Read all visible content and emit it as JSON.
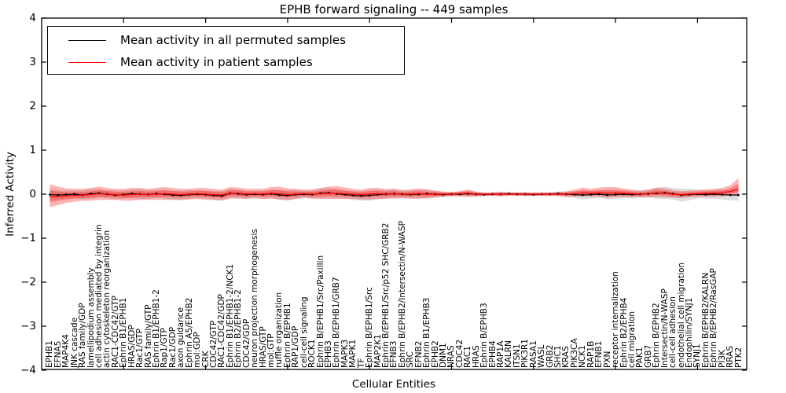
{
  "title": "EPHB forward signaling -- 449 samples",
  "axes": {
    "ylabel": "Inferred Activity",
    "xlabel": "Cellular Entities",
    "yticks": [
      "4",
      "3",
      "2",
      "1",
      "0",
      "−1",
      "−2",
      "−3",
      "−4"
    ]
  },
  "legend": {
    "items": [
      {
        "label": "Mean activity in all permuted samples",
        "color": "#000000"
      },
      {
        "label": "Mean activity in patient samples",
        "color": "#ff0000"
      }
    ]
  },
  "chart_data": {
    "type": "line",
    "title": "EPHB forward signaling -- 449 samples",
    "xlabel": "Cellular Entities",
    "ylabel": "Inferred Activity",
    "ylim": [
      -4,
      4
    ],
    "ytick_values": [
      4,
      3,
      2,
      1,
      0,
      -1,
      -2,
      -3,
      -4
    ],
    "xtick_positions": [
      10,
      20,
      30,
      40,
      50,
      60,
      70,
      80
    ],
    "grid": false,
    "legend_position": "upper left",
    "categories": [
      "EPHB1",
      "EFNA5",
      "MAP4K4",
      "JNK cascade",
      "RAS family/GDP",
      "lamellipodium assembly",
      "cell adhesion mediated by integrin",
      "actin cytoskeleton reorganization",
      "RAC1-CDC42/GTP",
      "Ephrin B1/EPHB1",
      "HRAS/GDP",
      "Rac1/GTP",
      "RAS family/GTP",
      "Ephrin B1/EPHB1-2",
      "Rap1/GTP",
      "Rac1/GDP",
      "axon guidance",
      "Ephrin A5/EPHB2",
      "mol:GDP",
      "CRK",
      "CDC42/GTP",
      "RAC1-CDC42/GDP",
      "Ephrin B1/EPHB1-2/NCK1",
      "Ephrin B2/EPHB1-2",
      "CDC42/GDP",
      "neuron projection morphogenesis",
      "HRAS/GTP",
      "mol:GTP",
      "ruffle organization",
      "Ephrin B/EPHB1",
      "RAP1/GDP",
      "cell-cell signaling",
      "ROCK1",
      "Ephrin B/EPHB1/Src/Paxillin",
      "EPHB3",
      "Ephrin B/EPHB1/GRB7",
      "MAPK3",
      "MAPK1",
      "TF",
      "Ephrin B/EPHB1/Src",
      "MAP2K1",
      "Ephrin B/EPHB1/Src/p52 SHC/GRB2",
      "EFNB3",
      "Ephrin B/EPHB2/Intersectin/N-WASP",
      "SRC",
      "EFNB2",
      "Ephrin B1/EPHB3",
      "EPHB2",
      "DNM1",
      "NRAS",
      "CDC42",
      "RAC1",
      "HRAS",
      "Ephrin B/EPHB3",
      "EPHB4",
      "RAP1A",
      "KALRN",
      "ITSN1",
      "PIK3R1",
      "RASA1",
      "WASL",
      "GRB2",
      "SHC1",
      "KRAS",
      "PIK3CA",
      "NCK1",
      "RAP1B",
      "EFNB1",
      "PXN",
      "receptor internalization",
      "Ephrin B2/EPHB4",
      "cell migration",
      "PAK1",
      "GRB7",
      "Ephrin B/EPHB2",
      "Intersectin/N-WASP",
      "cell-cell adhesion",
      "endothelial cell migration",
      "Endophilin/SYNJ1",
      "SYNJ1",
      "Ephrin B/EPHB2/KALRN",
      "Ephrin B/EPHB2/RasGAP",
      "PI3K",
      "RRAS",
      "PTK2"
    ],
    "series": [
      {
        "name": "Mean activity in all permuted samples",
        "color": "#000000",
        "marker": "dot",
        "values": [
          -0.01,
          -0.02,
          -0.01,
          0,
          -0.02,
          0.01,
          0.02,
          0,
          -0.02,
          -0.01,
          0.01,
          0,
          -0.01,
          0.01,
          0,
          -0.02,
          -0.03,
          -0.01,
          0,
          -0.01,
          -0.03,
          -0.04,
          0.02,
          0.01,
          -0.01,
          0,
          -0.01,
          0.01,
          -0.02,
          -0.03,
          -0.01,
          0,
          -0.01,
          0.02,
          0.03,
          0.01,
          -0.01,
          -0.03,
          -0.04,
          -0.03,
          -0.01,
          0,
          0.01,
          0,
          -0.01,
          0,
          0.01,
          0,
          -0.01,
          0,
          0,
          0.01,
          0,
          -0.01,
          0,
          0,
          0.01,
          0,
          0,
          -0.01,
          0,
          0,
          0.01,
          0,
          -0.01,
          -0.02,
          -0.01,
          0,
          -0.02,
          -0.01,
          0,
          -0.01,
          0,
          0.01,
          0.02,
          0.03,
          0.01,
          -0.02,
          -0.01,
          0,
          -0.01,
          0,
          -0.01,
          -0.02,
          -0.02
        ]
      },
      {
        "name": "Mean activity in patient samples",
        "color": "#ff0000",
        "marker": null,
        "values": [
          -0.06,
          -0.05,
          -0.04,
          -0.03,
          -0.02,
          -0.01,
          0.01,
          0,
          -0.01,
          -0.02,
          -0.01,
          0,
          -0.01,
          0,
          0.01,
          0,
          -0.01,
          0,
          0.01,
          0,
          -0.01,
          -0.02,
          0.02,
          0.02,
          0,
          0.01,
          0,
          0.02,
          0.01,
          -0.01,
          0,
          0.01,
          0,
          0.01,
          0.02,
          0.02,
          0.01,
          0,
          -0.01,
          0,
          0.01,
          0,
          0.01,
          0,
          0,
          0.01,
          0,
          0,
          0,
          0,
          0.01,
          0.02,
          0,
          0,
          0,
          0,
          0,
          0,
          0,
          0,
          0,
          0,
          0,
          0,
          0.01,
          0.03,
          0.02,
          0.03,
          0.02,
          0.03,
          0.02,
          0.01,
          0,
          0.01,
          0.03,
          0.02,
          0,
          -0.01,
          0,
          0.01,
          0.02,
          0.02,
          0.03,
          0.06,
          0.12
        ]
      }
    ],
    "bands": [
      {
        "name": "permuted samples range",
        "color": "#000000",
        "opacity": 0.13,
        "center_series": 0,
        "draw_scales": [
          1
        ],
        "upper_offset": [
          0.12,
          0.1,
          0.09,
          0.09,
          0.1,
          0.11,
          0.1,
          0.09,
          0.1,
          0.09,
          0.1,
          0.11,
          0.1,
          0.09,
          0.1,
          0.1,
          0.11,
          0.1,
          0.09,
          0.09,
          0.1,
          0.11,
          0.1,
          0.09,
          0.09,
          0.08,
          0.09,
          0.1,
          0.11,
          0.12,
          0.1,
          0.08,
          0.09,
          0.1,
          0.11,
          0.1,
          0.09,
          0.1,
          0.11,
          0.12,
          0.11,
          0.1,
          0.09,
          0.08,
          0.09,
          0.1,
          0.09,
          0.07,
          0.06,
          0.05,
          0.05,
          0.06,
          0.05,
          0.04,
          0.04,
          0.05,
          0.04,
          0.04,
          0.05,
          0.04,
          0.04,
          0.04,
          0.05,
          0.06,
          0.08,
          0.1,
          0.09,
          0.08,
          0.1,
          0.09,
          0.08,
          0.09,
          0.08,
          0.09,
          0.12,
          0.14,
          0.13,
          0.15,
          0.13,
          0.1,
          0.09,
          0.1,
          0.11,
          0.12,
          0.13
        ],
        "lower_offset": [
          0.12,
          0.1,
          0.09,
          0.09,
          0.1,
          0.11,
          0.1,
          0.09,
          0.1,
          0.09,
          0.1,
          0.11,
          0.1,
          0.09,
          0.1,
          0.1,
          0.11,
          0.1,
          0.09,
          0.09,
          0.1,
          0.11,
          0.1,
          0.09,
          0.09,
          0.08,
          0.09,
          0.1,
          0.11,
          0.12,
          0.1,
          0.08,
          0.09,
          0.1,
          0.11,
          0.1,
          0.09,
          0.1,
          0.11,
          0.12,
          0.11,
          0.1,
          0.09,
          0.08,
          0.09,
          0.1,
          0.09,
          0.07,
          0.06,
          0.05,
          0.05,
          0.06,
          0.05,
          0.04,
          0.04,
          0.05,
          0.04,
          0.04,
          0.05,
          0.04,
          0.04,
          0.04,
          0.05,
          0.06,
          0.08,
          0.1,
          0.09,
          0.08,
          0.1,
          0.09,
          0.08,
          0.09,
          0.08,
          0.09,
          0.12,
          0.14,
          0.13,
          0.15,
          0.13,
          0.1,
          0.09,
          0.1,
          0.11,
          0.12,
          0.13
        ]
      },
      {
        "name": "patient samples range",
        "color": "#ff0000",
        "opacity": 0.3,
        "center_series": 1,
        "draw_scales": [
          1,
          0.5
        ],
        "upper_offset": [
          0.28,
          0.22,
          0.17,
          0.15,
          0.14,
          0.15,
          0.16,
          0.14,
          0.13,
          0.14,
          0.15,
          0.14,
          0.13,
          0.14,
          0.15,
          0.14,
          0.13,
          0.12,
          0.13,
          0.14,
          0.13,
          0.12,
          0.14,
          0.13,
          0.12,
          0.11,
          0.12,
          0.14,
          0.16,
          0.14,
          0.12,
          0.09,
          0.11,
          0.13,
          0.15,
          0.16,
          0.14,
          0.12,
          0.11,
          0.14,
          0.13,
          0.11,
          0.12,
          0.09,
          0.11,
          0.12,
          0.11,
          0.08,
          0.06,
          0.05,
          0.06,
          0.09,
          0.06,
          0.04,
          0.04,
          0.05,
          0.04,
          0.04,
          0.04,
          0.04,
          0.04,
          0.04,
          0.05,
          0.06,
          0.09,
          0.12,
          0.1,
          0.12,
          0.14,
          0.13,
          0.11,
          0.09,
          0.08,
          0.09,
          0.12,
          0.11,
          0.09,
          0.08,
          0.08,
          0.08,
          0.09,
          0.1,
          0.11,
          0.14,
          0.24
        ],
        "lower_offset": [
          0.24,
          0.2,
          0.16,
          0.14,
          0.13,
          0.14,
          0.14,
          0.13,
          0.12,
          0.13,
          0.14,
          0.13,
          0.12,
          0.13,
          0.14,
          0.13,
          0.12,
          0.12,
          0.12,
          0.13,
          0.12,
          0.12,
          0.12,
          0.12,
          0.11,
          0.1,
          0.11,
          0.12,
          0.13,
          0.12,
          0.11,
          0.09,
          0.1,
          0.12,
          0.13,
          0.13,
          0.12,
          0.11,
          0.11,
          0.12,
          0.12,
          0.1,
          0.11,
          0.09,
          0.1,
          0.11,
          0.1,
          0.08,
          0.06,
          0.05,
          0.06,
          0.08,
          0.06,
          0.04,
          0.04,
          0.05,
          0.04,
          0.04,
          0.04,
          0.04,
          0.04,
          0.04,
          0.05,
          0.06,
          0.07,
          0.08,
          0.08,
          0.09,
          0.1,
          0.1,
          0.09,
          0.08,
          0.07,
          0.08,
          0.09,
          0.09,
          0.08,
          0.08,
          0.07,
          0.07,
          0.08,
          0.08,
          0.08,
          0.09,
          0.12
        ]
      }
    ]
  }
}
